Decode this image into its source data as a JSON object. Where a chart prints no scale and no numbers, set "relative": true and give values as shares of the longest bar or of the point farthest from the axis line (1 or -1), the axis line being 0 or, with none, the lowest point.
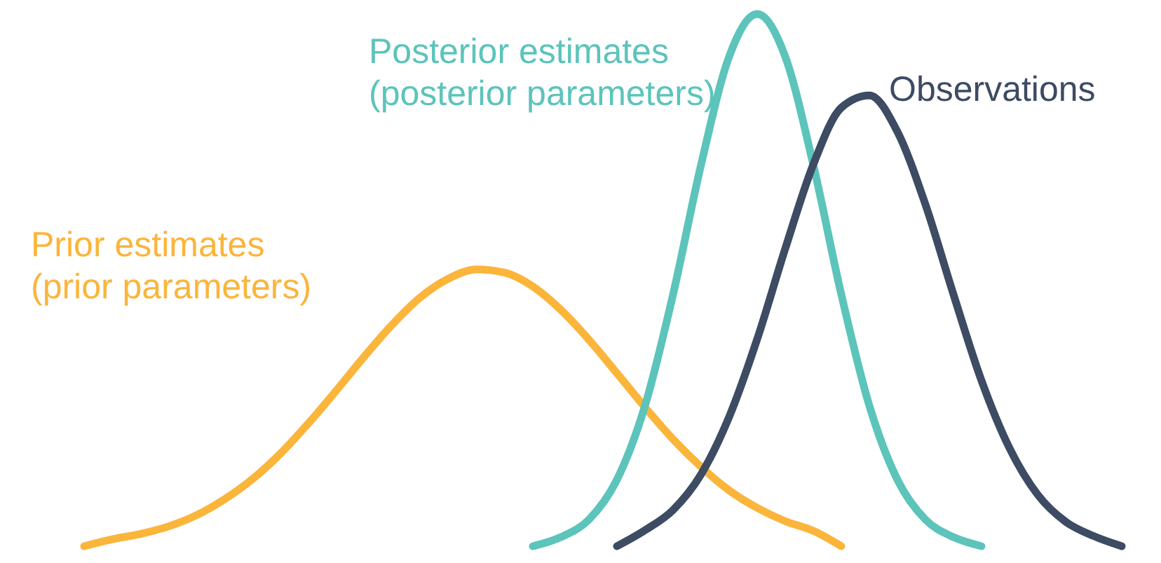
{
  "chart_data": {
    "type": "line",
    "relative": true,
    "categories": [
      null,
      null,
      null,
      null,
      null,
      null,
      null,
      null,
      null,
      null,
      null,
      null,
      null,
      null,
      null,
      null,
      null,
      null,
      null,
      null,
      null,
      null,
      null,
      null,
      null,
      null,
      null,
      null,
      null,
      null,
      null,
      null,
      null,
      null,
      null,
      null,
      null,
      null
    ],
    "series": [
      {
        "name": "Prior estimates\n(prior parameters)",
        "color": "#fbb53b",
        "values": [
          0,
          0.013,
          0.023,
          0.037,
          0.058,
          0.088,
          0.126,
          0.174,
          0.231,
          0.293,
          0.357,
          0.417,
          0.468,
          0.503,
          0.52,
          0.514,
          0.488,
          0.444,
          0.388,
          0.325,
          0.261,
          0.201,
          0.149,
          0.105,
          0.072,
          0.047,
          0.029,
          0,
          null,
          null,
          null,
          null,
          null,
          null,
          null,
          null,
          null,
          null
        ]
      },
      {
        "name": "Posterior estimates\n(posterior parameters)",
        "color": "#5cc4bb",
        "values": [
          null,
          null,
          null,
          null,
          null,
          null,
          null,
          null,
          null,
          null,
          null,
          null,
          null,
          null,
          null,
          null,
          0,
          0.017,
          0.05,
          0.125,
          0.264,
          0.473,
          0.717,
          0.92,
          1.0,
          0.92,
          0.717,
          0.473,
          0.264,
          0.125,
          0.05,
          0.017,
          0,
          null,
          null,
          null,
          null,
          null
        ]
      },
      {
        "name": "Observations",
        "color": "#3d4b63",
        "values": [
          null,
          null,
          null,
          null,
          null,
          null,
          null,
          null,
          null,
          null,
          null,
          null,
          null,
          null,
          null,
          null,
          null,
          null,
          null,
          0,
          0.03,
          0.068,
          0.135,
          0.243,
          0.389,
          0.559,
          0.717,
          0.824,
          0.847,
          0.779,
          0.642,
          0.473,
          0.311,
          0.184,
          0.097,
          0.046,
          0.019,
          0
        ]
      }
    ]
  }
}
